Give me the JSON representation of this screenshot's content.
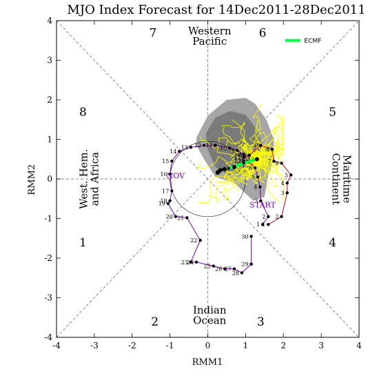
{
  "chart_data": {
    "type": "scatter",
    "title": "MJO Index Forecast for 14Dec2011-28Dec2011",
    "xlabel": "RMM1",
    "ylabel": "RMM2",
    "xlim": [
      -4,
      4
    ],
    "ylim": [
      -4,
      4
    ],
    "xticks": [
      "-4",
      "-3",
      "-2",
      "-1",
      "0",
      "1",
      "2",
      "3",
      "4"
    ],
    "yticks": [
      "-4",
      "-3",
      "-2",
      "-1",
      "0",
      "1",
      "2",
      "3",
      "4"
    ],
    "phase_labels": [
      "1",
      "2",
      "3",
      "4",
      "5",
      "6",
      "7",
      "8"
    ],
    "region_labels": {
      "top": [
        "Western",
        "Pacific"
      ],
      "bottom": [
        "Indian",
        "Ocean"
      ],
      "left": [
        "West. Hem.",
        "and Africa"
      ],
      "right": [
        "Maritime",
        "Continent"
      ]
    },
    "annotations": [
      "START",
      "NOV"
    ],
    "legend": {
      "entries": [
        {
          "name": "ECMF",
          "color": "#00ff44"
        }
      ],
      "placement": "top-right"
    },
    "colors": {
      "nov_track": "#7a00b0",
      "dec_track": "#cc0000",
      "ensemble": "#ffff00",
      "mean": "#00ff44",
      "shade_outer": "#a6a6a6",
      "shade_inner": "#7a7a7a"
    },
    "observed_nov": [
      {
        "label": "1",
        "x": 1.45,
        "y": -1.15
      },
      {
        "label": "2",
        "x": 1.6,
        "y": -0.95
      },
      {
        "label": "3",
        "x": 1.4,
        "y": -0.55
      },
      {
        "label": "4",
        "x": 1.38,
        "y": -0.2
      },
      {
        "label": "5",
        "x": 1.32,
        "y": 0.05
      },
      {
        "label": "6",
        "x": 1.25,
        "y": 0.28
      },
      {
        "label": "7",
        "x": 1.05,
        "y": 0.45
      },
      {
        "label": "8",
        "x": 0.95,
        "y": 0.62
      },
      {
        "label": "9",
        "x": 0.78,
        "y": 0.72
      },
      {
        "label": "10",
        "x": 0.58,
        "y": 0.78
      },
      {
        "label": "11",
        "x": 0.2,
        "y": 0.85
      },
      {
        "label": "12",
        "x": -0.1,
        "y": 0.85
      },
      {
        "label": "13",
        "x": -0.45,
        "y": 0.8
      },
      {
        "label": "14",
        "x": -0.75,
        "y": 0.7
      },
      {
        "label": "15",
        "x": -0.95,
        "y": 0.45
      },
      {
        "label": "16",
        "x": -1.0,
        "y": 0.12
      },
      {
        "label": "17",
        "x": -0.95,
        "y": -0.3
      },
      {
        "label": "18",
        "x": -1.0,
        "y": -0.55
      },
      {
        "label": "19",
        "x": -1.05,
        "y": -0.62
      },
      {
        "label": "20",
        "x": -0.85,
        "y": -0.95
      },
      {
        "label": "21",
        "x": -0.55,
        "y": -0.98
      },
      {
        "label": "22",
        "x": -0.2,
        "y": -1.55
      },
      {
        "label": "23",
        "x": -0.45,
        "y": -2.1
      },
      {
        "label": "24",
        "x": -0.3,
        "y": -2.1
      },
      {
        "label": "25",
        "x": 0.15,
        "y": -2.2
      },
      {
        "label": "26",
        "x": 0.45,
        "y": -2.27
      },
      {
        "label": "27",
        "x": 0.7,
        "y": -2.27
      },
      {
        "label": "28",
        "x": 0.9,
        "y": -2.37
      },
      {
        "label": "29",
        "x": 1.15,
        "y": -2.15
      },
      {
        "label": "30",
        "x": 1.15,
        "y": -1.45
      }
    ],
    "observed_dec": [
      {
        "label": "1",
        "x": 1.6,
        "y": -1.15
      },
      {
        "label": "2",
        "x": 1.95,
        "y": -0.95
      },
      {
        "label": "3",
        "x": 2.1,
        "y": -0.35
      },
      {
        "label": "4",
        "x": 2.1,
        "y": -0.1
      },
      {
        "label": "5",
        "x": 2.2,
        "y": 0.1
      },
      {
        "label": "6",
        "x": 1.95,
        "y": 0.4
      },
      {
        "label": "7",
        "x": 1.75,
        "y": 0.45
      },
      {
        "label": "8",
        "x": 1.7,
        "y": 0.75
      },
      {
        "label": "9",
        "x": 1.4,
        "y": 0.85
      },
      {
        "label": "10",
        "x": 1.1,
        "y": 0.6
      },
      {
        "label": "11",
        "x": 0.95,
        "y": 0.55
      },
      {
        "label": "12",
        "x": 0.95,
        "y": 0.45
      },
      {
        "label": "13",
        "x": 1.3,
        "y": 0.5
      }
    ],
    "ensemble_mean": [
      {
        "x": 1.3,
        "y": 0.5
      },
      {
        "x": 0.95,
        "y": 0.4
      },
      {
        "x": 0.7,
        "y": 0.3
      },
      {
        "x": 0.55,
        "y": 0.27
      },
      {
        "x": 0.45,
        "y": 0.25
      },
      {
        "x": 0.38,
        "y": 0.24
      },
      {
        "x": 0.33,
        "y": 0.22
      },
      {
        "x": 0.3,
        "y": 0.2
      },
      {
        "x": 0.28,
        "y": 0.18
      },
      {
        "x": 0.27,
        "y": 0.17
      },
      {
        "x": 0.26,
        "y": 0.16
      }
    ]
  }
}
